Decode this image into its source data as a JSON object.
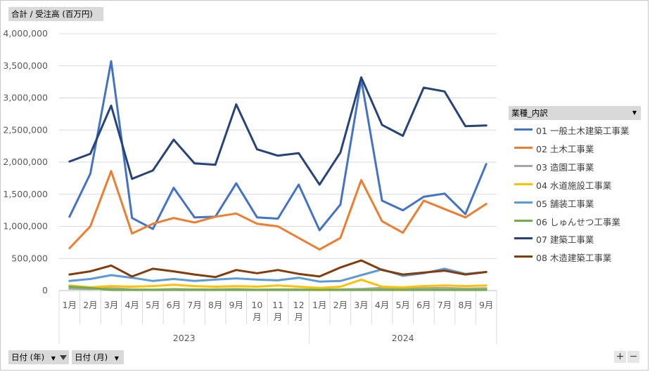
{
  "value_field_label": "合計 / 受注高 (百万円)",
  "legend_field_label": "業種_内訳",
  "row_fields": [
    {
      "label": "日付 (年)",
      "filter_icon": "filter-icon"
    },
    {
      "label": "日付 (月)"
    }
  ],
  "zoom": {
    "plus": "+",
    "minus": "−"
  },
  "colors": {
    "01": "#4472C4",
    "02": "#ED7D31",
    "03": "#A5A5A5",
    "04": "#FFC000",
    "05": "#5B9BD5",
    "06": "#70AD47",
    "07": "#264478",
    "08": "#843C0C"
  },
  "chart_data": {
    "type": "line",
    "y_ticks": [
      "4,000,000",
      "3,500,000",
      "3,000,000",
      "2,500,000",
      "2,000,000",
      "1,500,000",
      "1,000,000",
      "500,000",
      "0"
    ],
    "ylim": [
      0,
      4000000
    ],
    "grid": true,
    "legend_position": "right",
    "year_groups": [
      {
        "label": "2023",
        "months": [
          "1月",
          "2月",
          "3月",
          "4月",
          "5月",
          "6月",
          "7月",
          "8月",
          "9月",
          "10月",
          "11月",
          "12月"
        ]
      },
      {
        "label": "2024",
        "months": [
          "1月",
          "2月",
          "3月",
          "4月",
          "5月",
          "6月",
          "7月",
          "8月",
          "9月"
        ]
      }
    ],
    "series": [
      {
        "name": "01 一般土木建築工事業",
        "color": "#4472C4",
        "values": [
          1150000,
          1820000,
          3570000,
          1130000,
          960000,
          1600000,
          1140000,
          1150000,
          1670000,
          1140000,
          1120000,
          1650000,
          940000,
          1340000,
          3290000,
          1400000,
          1250000,
          1460000,
          1510000,
          1190000,
          1970000
        ]
      },
      {
        "name": "02 土木工事業",
        "color": "#ED7D31",
        "values": [
          660000,
          1000000,
          1860000,
          890000,
          1040000,
          1130000,
          1060000,
          1150000,
          1200000,
          1040000,
          1000000,
          820000,
          640000,
          820000,
          1720000,
          1080000,
          900000,
          1400000,
          1270000,
          1140000,
          1350000
        ]
      },
      {
        "name": "03 造園工事業",
        "color": "#A5A5A5",
        "values": [
          30000,
          25000,
          35000,
          20000,
          15000,
          25000,
          20000,
          20000,
          25000,
          15000,
          20000,
          20000,
          15000,
          20000,
          25000,
          40000,
          30000,
          35000,
          40000,
          30000,
          35000
        ]
      },
      {
        "name": "04 水道施設工事業",
        "color": "#FFC000",
        "values": [
          80000,
          50000,
          70000,
          60000,
          70000,
          90000,
          70000,
          60000,
          70000,
          60000,
          80000,
          60000,
          40000,
          60000,
          170000,
          60000,
          50000,
          70000,
          80000,
          70000,
          80000
        ]
      },
      {
        "name": "05 舗装工事業",
        "color": "#5B9BD5",
        "values": [
          150000,
          180000,
          240000,
          200000,
          150000,
          180000,
          150000,
          170000,
          190000,
          170000,
          160000,
          200000,
          140000,
          150000,
          240000,
          330000,
          230000,
          270000,
          340000,
          260000,
          290000
        ]
      },
      {
        "name": "06 しゅんせつ工事業",
        "color": "#70AD47",
        "values": [
          60000,
          40000,
          10000,
          10000,
          10000,
          10000,
          10000,
          10000,
          10000,
          10000,
          10000,
          10000,
          10000,
          10000,
          10000,
          10000,
          10000,
          10000,
          10000,
          10000,
          10000
        ]
      },
      {
        "name": "07 建築工事業",
        "color": "#264478",
        "values": [
          2010000,
          2130000,
          2880000,
          1740000,
          1870000,
          2350000,
          1980000,
          1960000,
          2900000,
          2200000,
          2100000,
          2140000,
          1650000,
          2150000,
          3320000,
          2580000,
          2410000,
          3160000,
          3100000,
          2560000,
          2570000
        ]
      },
      {
        "name": "08 木造建築工事業",
        "color": "#843C0C",
        "values": [
          250000,
          300000,
          390000,
          220000,
          340000,
          300000,
          250000,
          210000,
          320000,
          270000,
          320000,
          260000,
          220000,
          360000,
          470000,
          320000,
          250000,
          280000,
          310000,
          250000,
          290000
        ]
      }
    ]
  }
}
